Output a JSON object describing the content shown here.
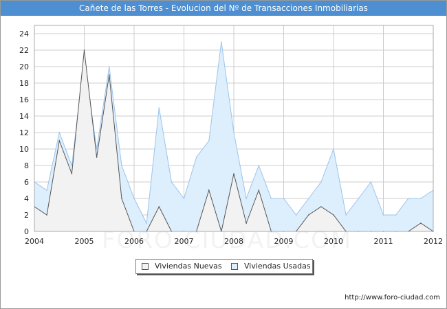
{
  "title": "Cañete de las Torres - Evolucion del Nº de Transacciones Inmobiliarias",
  "footer_url": "http://www.foro-ciudad.com",
  "watermark": "FORO-CIUDAD.COM",
  "colors": {
    "title_bar": "#4d8fd1",
    "nuevas_fill": "#f2f2f2",
    "nuevas_line": "#555555",
    "usadas_fill": "#ddeefc",
    "usadas_line": "#9cc4ec",
    "grid": "#cccccc"
  },
  "chart_data": {
    "type": "area",
    "title": "Cañete de las Torres - Evolucion del Nº de Transacciones Inmobiliarias",
    "xlabel": "",
    "ylabel": "",
    "x": [
      2004.0,
      2004.25,
      2004.5,
      2004.75,
      2005.0,
      2005.25,
      2005.5,
      2005.75,
      2006.0,
      2006.25,
      2006.5,
      2006.75,
      2007.0,
      2007.25,
      2007.5,
      2007.75,
      2008.0,
      2008.25,
      2008.5,
      2008.75,
      2009.0,
      2009.25,
      2009.5,
      2009.75,
      2010.0,
      2010.25,
      2010.5,
      2010.75,
      2011.0,
      2011.25,
      2011.5,
      2011.75,
      2012.0
    ],
    "series": [
      {
        "name": "Viviendas Nuevas",
        "values": [
          3,
          2,
          11,
          7,
          22,
          9,
          19,
          4,
          0,
          0,
          3,
          0,
          0,
          0,
          5,
          0,
          7,
          1,
          5,
          0,
          0,
          0,
          2,
          3,
          2,
          0,
          0,
          0,
          0,
          0,
          0,
          1,
          0
        ]
      },
      {
        "name": "Viviendas Usadas",
        "values": [
          6,
          5,
          12,
          8,
          21,
          10,
          20,
          8,
          4,
          1,
          15,
          6,
          4,
          9,
          11,
          23,
          12,
          4,
          8,
          4,
          4,
          2,
          4,
          6,
          10,
          2,
          4,
          6,
          2,
          2,
          4,
          4,
          5
        ]
      }
    ],
    "xticks": [
      "2004",
      "2005",
      "2006",
      "2007",
      "2008",
      "2009",
      "2010",
      "2011",
      "2012"
    ],
    "xlim": [
      2004,
      2012
    ],
    "yticks": [
      0,
      2,
      4,
      6,
      8,
      10,
      12,
      14,
      16,
      18,
      20,
      22,
      24
    ],
    "ylim": [
      0,
      25
    ],
    "grid": true,
    "legend": "bottom-center",
    "legend_entries": [
      "Viviendas Nuevas",
      "Viviendas Usadas"
    ]
  }
}
